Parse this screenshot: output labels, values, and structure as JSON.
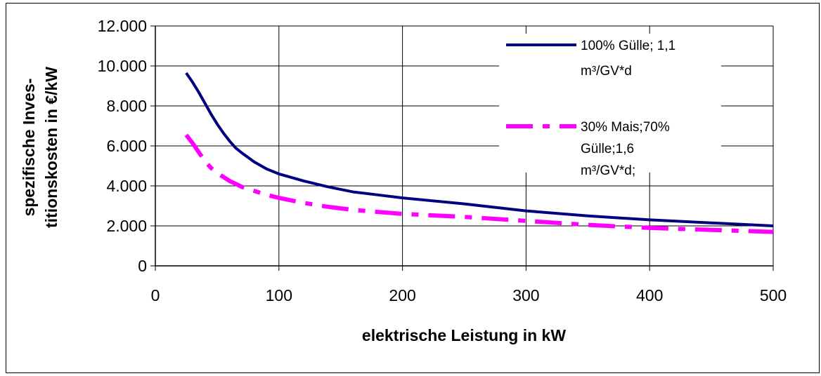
{
  "chart_data": {
    "type": "line",
    "title": "",
    "xlabel": "elektrische Leistung in kW",
    "ylabel_lines": [
      "spezifische Inves-",
      "titionskosten in €/kW"
    ],
    "xlim": [
      0,
      500
    ],
    "ylim": [
      0,
      12000
    ],
    "x_ticks": [
      0,
      100,
      200,
      300,
      400,
      500
    ],
    "x_tick_labels": [
      "0",
      "100",
      "200",
      "300",
      "400",
      "500"
    ],
    "y_ticks": [
      0,
      2000,
      4000,
      6000,
      8000,
      10000,
      12000
    ],
    "y_tick_labels": [
      "0",
      "2.000",
      "4.000",
      "6.000",
      "8.000",
      "10.000",
      "12.000"
    ],
    "grid": true,
    "legend_position": "top-right",
    "series": [
      {
        "name": "100% Gülle; 1,1 m³/GV*d",
        "name_lines": [
          "100% Gülle; 1,1",
          "m³/GV*d"
        ],
        "color": "#000080",
        "style": "solid",
        "x": [
          25,
          30,
          35,
          40,
          45,
          50,
          55,
          60,
          65,
          70,
          80,
          90,
          100,
          120,
          140,
          160,
          180,
          200,
          250,
          300,
          350,
          400,
          450,
          500
        ],
        "y": [
          9650,
          9200,
          8700,
          8150,
          7600,
          7100,
          6650,
          6250,
          5900,
          5650,
          5200,
          4850,
          4600,
          4250,
          3950,
          3700,
          3550,
          3400,
          3100,
          2750,
          2500,
          2300,
          2150,
          2000
        ]
      },
      {
        "name": "30% Mais;70% Gülle;1,6 m³/GV*d;",
        "name_lines": [
          "30% Mais;70%",
          "Gülle;1,6",
          "m³/GV*d;"
        ],
        "color": "#ff00ff",
        "style": "dash-dot",
        "x": [
          25,
          30,
          35,
          40,
          45,
          50,
          55,
          60,
          65,
          70,
          80,
          90,
          100,
          120,
          140,
          160,
          180,
          200,
          250,
          300,
          350,
          400,
          450,
          500
        ],
        "y": [
          6550,
          6150,
          5700,
          5250,
          4900,
          4650,
          4450,
          4250,
          4100,
          3950,
          3750,
          3550,
          3400,
          3150,
          2950,
          2800,
          2700,
          2600,
          2450,
          2250,
          2050,
          1900,
          1800,
          1700
        ]
      }
    ]
  }
}
